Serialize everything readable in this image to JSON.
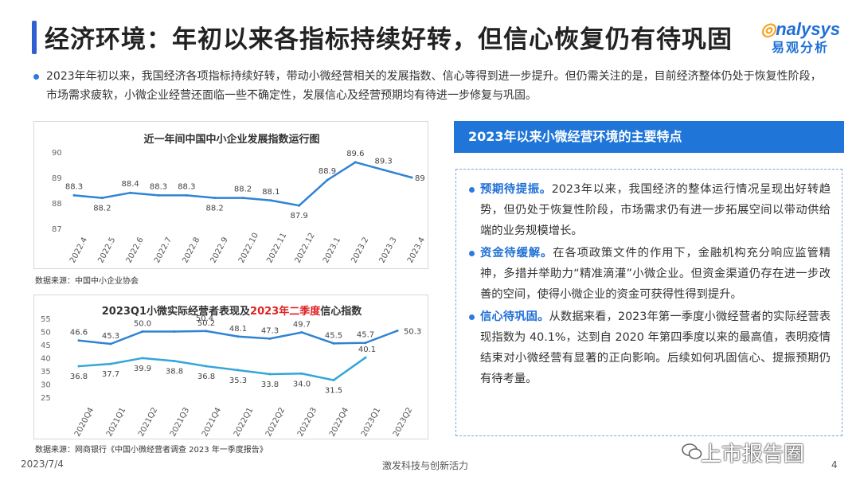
{
  "page_title": "经济环境：年初以来各指标持续好转，但信心恢复仍有待巩固",
  "logo": {
    "en": "nalysys",
    "cn": "易观分析"
  },
  "intro_text": "2023年年初以来，我国经济各项指标持续好转，带动小微经营相关的发展指数、信心等得到进一步提升。但仍需关注的是，目前经济整体仍处于恢复性阶段，市场需求疲软，小微企业经营还面临一些不确定性，发展信心及经营预期均有待进一步修复与巩固。",
  "chart1_source": "数据来源：中国中小企业协会",
  "chart2_source": "数据来源：网商银行《中国小微经营者调查 2023 年一季度报告》",
  "right": {
    "header": "2023年以来小微经营环境的主要特点",
    "items": [
      {
        "head": "预期待提振。",
        "text": "2023年以来，我国经济的整体运行情况呈现出好转趋势，但仍处于恢复性阶段，市场需求仍有进一步拓展空间以带动供给端的业务规模增长。"
      },
      {
        "head": "资金待缓解。",
        "text": "在各项政策文件的作用下，金融机构充分响应监管精神，多措并举助力“精准滴灌”小微企业。但资金渠道仍存在进一步改善的空间，使得小微企业的资金可获得性得到提升。"
      },
      {
        "head": "信心待巩固。",
        "text": "从数据来看，2023年第一季度小微经营者的实际经营表现指数为 40.1%，达到自 2020 年第四季度以来的最高值，表明疫情结束对小微经营有显著的正向影响。后续如何巩固信心、提振预期仍有待考量。"
      }
    ]
  },
  "footer": {
    "date": "2023/7/4",
    "slogan": "激发科技与创新活力",
    "page": "4"
  },
  "watermark": "上市报告圈",
  "chart_data": [
    {
      "type": "line",
      "title": "近一年间中国中小企业发展指数运行图",
      "categories": [
        "2022.4",
        "2022.5",
        "2022.6",
        "2022.7",
        "2022.8",
        "2022.9",
        "2022.10",
        "2022.11",
        "2022.12",
        "2023.1",
        "2023.2",
        "2023.3",
        "2023.4"
      ],
      "series": [
        {
          "values": [
            88.3,
            88.2,
            88.4,
            88.3,
            88.3,
            88.2,
            88.2,
            88.1,
            87.9,
            88.9,
            89.6,
            89.3,
            89.0
          ],
          "labels": [
            "88.3",
            "88.2",
            "88.4",
            "88.3",
            "88.3",
            "88.2",
            "88.2",
            "88.1",
            "87.9",
            "88.9",
            "89.6",
            "89.3",
            "89"
          ]
        }
      ],
      "yticks": [
        "87",
        "88",
        "89",
        "90"
      ],
      "ylim": [
        87,
        90
      ],
      "color": "#2f83d4"
    },
    {
      "type": "line",
      "title_part1": "2023Q1小微实际经营者表现及",
      "title_part2": "2023年二季度",
      "title_part3": "信心指数",
      "title_highlight_color": "#e02020",
      "categories": [
        "2020Q4",
        "2021Q1",
        "2021Q2",
        "2021Q3",
        "2021Q4",
        "2022Q1",
        "2022Q2",
        "2022Q3",
        "2022Q4",
        "2023Q1",
        "2023Q2"
      ],
      "series": [
        {
          "values": [
            46.6,
            45.3,
            50.0,
            50.0,
            50.2,
            48.1,
            47.3,
            49.7,
            45.5,
            45.7,
            50.3
          ],
          "labels": [
            "46.6",
            "45.3",
            "50.0",
            "",
            "50.2",
            "48.1",
            "47.3",
            "49.7",
            "45.5",
            "45.7",
            "50.3"
          ],
          "color": "#2f83d4"
        },
        {
          "values": [
            36.8,
            37.7,
            39.9,
            38.8,
            36.8,
            35.3,
            33.8,
            34.0,
            31.5,
            40.1,
            null
          ],
          "labels": [
            "36.8",
            "37.7",
            "39.9",
            "38.8",
            "36.8",
            "35.3",
            "33.8",
            "34.0",
            "31.5",
            "40.1",
            ""
          ],
          "color": "#35a5d8"
        }
      ],
      "extra_label": "50.4",
      "yticks": [
        "25",
        "30",
        "35",
        "40",
        "45",
        "50",
        "55"
      ],
      "ylim": [
        25,
        55
      ]
    }
  ]
}
